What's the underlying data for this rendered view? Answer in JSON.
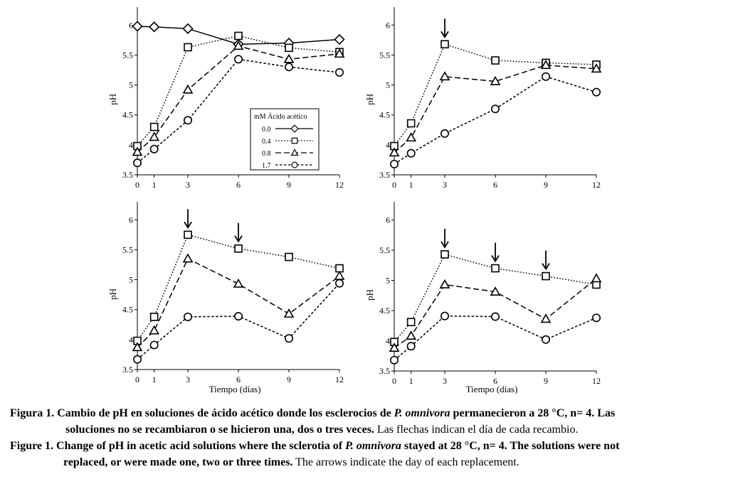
{
  "chart_data": [
    {
      "type": "line",
      "panel": "top-left",
      "title": "",
      "xlabel": "",
      "ylabel": "pH",
      "x": [
        0,
        1,
        3,
        6,
        9,
        12
      ],
      "x_ticks": [
        "0",
        "1",
        "3",
        "6",
        "9",
        "12"
      ],
      "ylim": [
        3.5,
        6.3
      ],
      "y_ticks": [
        "3.5",
        "4",
        "4.5",
        "5",
        "5.5",
        "6"
      ],
      "arrows_at_day": [],
      "legend": {
        "title": "mM Ácido acético",
        "position": "center-right",
        "entries": [
          "0.0",
          "0.4",
          "0.8",
          "1.7"
        ]
      },
      "series": [
        {
          "name": "0.0",
          "marker": "diamond",
          "line": "solid",
          "values": [
            5.98,
            5.97,
            5.94,
            5.68,
            5.7,
            5.76
          ]
        },
        {
          "name": "0.4",
          "marker": "square",
          "line": "dotted",
          "values": [
            3.98,
            4.3,
            5.63,
            5.82,
            5.62,
            5.55
          ]
        },
        {
          "name": "0.8",
          "marker": "triangle",
          "line": "dashed",
          "values": [
            3.88,
            4.13,
            4.92,
            5.65,
            5.43,
            5.52
          ]
        },
        {
          "name": "1.7",
          "marker": "circle",
          "line": "short-dashed",
          "values": [
            3.7,
            3.93,
            4.41,
            5.43,
            5.3,
            5.21
          ]
        }
      ]
    },
    {
      "type": "line",
      "panel": "top-right",
      "title": "",
      "xlabel": "",
      "ylabel": "pH",
      "x": [
        0,
        1,
        3,
        6,
        9,
        12
      ],
      "x_ticks": [
        "0",
        "1",
        "3",
        "6",
        "9",
        "12"
      ],
      "ylim": [
        3.5,
        6.3
      ],
      "y_ticks": [
        "3.5",
        "4",
        "4.5",
        "5",
        "5.5",
        "6"
      ],
      "arrows_at_day": [
        3
      ],
      "series": [
        {
          "name": "0.4",
          "marker": "square",
          "line": "dotted",
          "values": [
            3.98,
            4.36,
            5.68,
            5.41,
            5.37,
            5.34
          ]
        },
        {
          "name": "0.8",
          "marker": "triangle",
          "line": "dashed",
          "values": [
            3.87,
            4.12,
            5.14,
            5.06,
            5.33,
            5.27
          ]
        },
        {
          "name": "1.7",
          "marker": "circle",
          "line": "short-dashed",
          "values": [
            3.68,
            3.86,
            4.19,
            4.6,
            5.14,
            4.88
          ]
        }
      ]
    },
    {
      "type": "line",
      "panel": "bottom-left",
      "title": "",
      "xlabel": "Tiempo (días)",
      "ylabel": "pH",
      "x": [
        0,
        1,
        3,
        6,
        9,
        12
      ],
      "x_ticks": [
        "0",
        "1",
        "3",
        "6",
        "9",
        "12"
      ],
      "ylim": [
        3.5,
        6.3
      ],
      "y_ticks": [
        "3.5",
        "4",
        "4.5",
        "5",
        "5.5",
        "6"
      ],
      "arrows_at_day": [
        3,
        6
      ],
      "series": [
        {
          "name": "0.4",
          "marker": "square",
          "line": "dotted",
          "values": [
            3.98,
            4.38,
            5.75,
            5.52,
            5.38,
            5.19
          ]
        },
        {
          "name": "0.8",
          "marker": "triangle",
          "line": "dashed",
          "values": [
            3.87,
            4.15,
            5.35,
            4.93,
            4.43,
            5.06
          ]
        },
        {
          "name": "1.7",
          "marker": "circle",
          "line": "short-dashed",
          "values": [
            3.67,
            3.91,
            4.38,
            4.39,
            4.02,
            4.94
          ]
        }
      ]
    },
    {
      "type": "line",
      "panel": "bottom-right",
      "title": "",
      "xlabel": "Tiempo (días)",
      "ylabel": "pH",
      "x": [
        0,
        1,
        3,
        6,
        9,
        12
      ],
      "x_ticks": [
        "0",
        "1",
        "3",
        "6",
        "9",
        "12"
      ],
      "ylim": [
        3.5,
        6.3
      ],
      "y_ticks": [
        "3.5",
        "4",
        "4.5",
        "5",
        "5.5",
        "6"
      ],
      "arrows_at_day": [
        3,
        6,
        9
      ],
      "series": [
        {
          "name": "0.4",
          "marker": "square",
          "line": "dotted",
          "values": [
            3.98,
            4.31,
            5.43,
            5.2,
            5.07,
            4.93
          ]
        },
        {
          "name": "0.8",
          "marker": "triangle",
          "line": "dashed",
          "values": [
            3.88,
            4.08,
            4.93,
            4.81,
            4.36,
            5.03
          ]
        },
        {
          "name": "1.7",
          "marker": "circle",
          "line": "short-dashed",
          "values": [
            3.68,
            3.91,
            4.41,
            4.4,
            4.02,
            4.38
          ]
        }
      ]
    }
  ],
  "caption": {
    "es_label": "Figura 1.",
    "es_bold_1": "Cambio de pH en soluciones de ácido acético donde los esclerocios de",
    "es_italic": "P. omnivora",
    "es_bold_2": "permanecieron a 28 °C, n= 4. Las",
    "es_bold_3": "soluciones no se recambiaron o se hicieron una, dos o tres veces.",
    "es_normal": "Las flechas indican el día de cada recambio.",
    "en_label": "Figure 1.",
    "en_bold_1": "Change of pH in acetic acid solutions where the sclerotia of",
    "en_italic": "P. omnivora",
    "en_bold_2": "stayed at 28 °C, n= 4. The solutions were not",
    "en_bold_3": "replaced, or were made one, two or three times.",
    "en_normal": "The arrows indicate the day of each replacement."
  }
}
